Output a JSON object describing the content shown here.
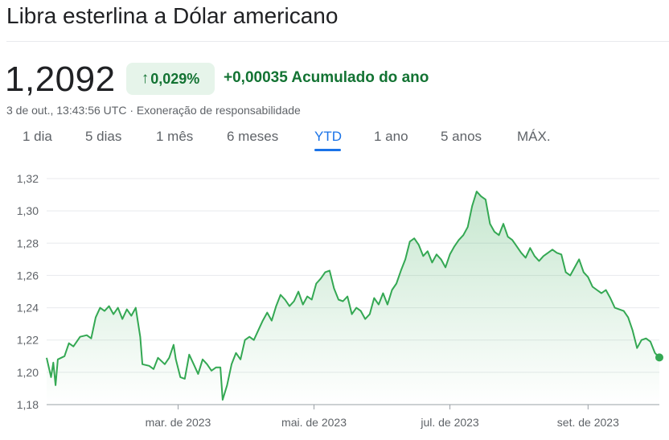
{
  "header": {
    "title": "Libra esterlina a Dólar americano",
    "price": "1,2092",
    "change_percent": "0,029%",
    "change_arrow_icon": "arrow-up-icon",
    "change_absolute": "+0,00035 Acumulado do ano",
    "timestamp": "3 de out., 13:43:56 UTC",
    "separator": " · ",
    "disclaimer": "Exoneração de responsabilidade"
  },
  "tabs": [
    {
      "label": "1 dia"
    },
    {
      "label": "5 dias"
    },
    {
      "label": "1 mês"
    },
    {
      "label": "6 meses"
    },
    {
      "label": "YTD",
      "active": true
    },
    {
      "label": "1 ano"
    },
    {
      "label": "5 anos"
    },
    {
      "label": "MÁX."
    }
  ],
  "colors": {
    "line": "#34a853",
    "positive_text": "#137333",
    "badge_bg": "#e6f4ea",
    "active_tab": "#1a73e8"
  },
  "chart_data": {
    "type": "area",
    "ylim": [
      1.18,
      1.32
    ],
    "yticks": [
      1.32,
      1.3,
      1.28,
      1.26,
      1.24,
      1.22,
      1.2,
      1.18
    ],
    "ytick_labels": [
      "1,32",
      "1,30",
      "1,28",
      "1,26",
      "1,24",
      "1,22",
      "1,20",
      "1,18"
    ],
    "xticks": [
      {
        "date": "2023-03-01",
        "label": "mar. de 2023"
      },
      {
        "date": "2023-05-01",
        "label": "mai. de 2023"
      },
      {
        "date": "2023-07-01",
        "label": "jul. de 2023"
      },
      {
        "date": "2023-09-01",
        "label": "set. de 2023"
      }
    ],
    "xlim": [
      "2023-01-01",
      "2023-10-03"
    ],
    "grid": "horizontal",
    "series": [
      {
        "points": [
          [
            "2023-01-01",
            1.209
          ],
          [
            "2023-01-03",
            1.197
          ],
          [
            "2023-01-04",
            1.206
          ],
          [
            "2023-01-05",
            1.192
          ],
          [
            "2023-01-06",
            1.208
          ],
          [
            "2023-01-09",
            1.21
          ],
          [
            "2023-01-11",
            1.218
          ],
          [
            "2023-01-13",
            1.216
          ],
          [
            "2023-01-16",
            1.222
          ],
          [
            "2023-01-19",
            1.223
          ],
          [
            "2023-01-21",
            1.221
          ],
          [
            "2023-01-23",
            1.234
          ],
          [
            "2023-01-25",
            1.24
          ],
          [
            "2023-01-27",
            1.238
          ],
          [
            "2023-01-29",
            1.241
          ],
          [
            "2023-01-31",
            1.236
          ],
          [
            "2023-02-02",
            1.24
          ],
          [
            "2023-02-04",
            1.233
          ],
          [
            "2023-02-06",
            1.239
          ],
          [
            "2023-02-08",
            1.235
          ],
          [
            "2023-02-10",
            1.24
          ],
          [
            "2023-02-12",
            1.222
          ],
          [
            "2023-02-13",
            1.205
          ],
          [
            "2023-02-16",
            1.204
          ],
          [
            "2023-02-18",
            1.202
          ],
          [
            "2023-02-20",
            1.209
          ],
          [
            "2023-02-23",
            1.205
          ],
          [
            "2023-02-25",
            1.209
          ],
          [
            "2023-02-27",
            1.217
          ],
          [
            "2023-02-28",
            1.208
          ],
          [
            "2023-03-02",
            1.197
          ],
          [
            "2023-03-04",
            1.196
          ],
          [
            "2023-03-06",
            1.211
          ],
          [
            "2023-03-08",
            1.205
          ],
          [
            "2023-03-10",
            1.199
          ],
          [
            "2023-03-12",
            1.208
          ],
          [
            "2023-03-14",
            1.205
          ],
          [
            "2023-03-16",
            1.201
          ],
          [
            "2023-03-18",
            1.203
          ],
          [
            "2023-03-20",
            1.203
          ],
          [
            "2023-03-21",
            1.183
          ],
          [
            "2023-03-23",
            1.192
          ],
          [
            "2023-03-25",
            1.205
          ],
          [
            "2023-03-27",
            1.212
          ],
          [
            "2023-03-29",
            1.208
          ],
          [
            "2023-03-31",
            1.22
          ],
          [
            "2023-04-02",
            1.222
          ],
          [
            "2023-04-04",
            1.22
          ],
          [
            "2023-04-06",
            1.226
          ],
          [
            "2023-04-08",
            1.232
          ],
          [
            "2023-04-10",
            1.237
          ],
          [
            "2023-04-12",
            1.232
          ],
          [
            "2023-04-14",
            1.241
          ],
          [
            "2023-04-16",
            1.248
          ],
          [
            "2023-04-18",
            1.245
          ],
          [
            "2023-04-20",
            1.241
          ],
          [
            "2023-04-22",
            1.244
          ],
          [
            "2023-04-24",
            1.25
          ],
          [
            "2023-04-26",
            1.242
          ],
          [
            "2023-04-28",
            1.247
          ],
          [
            "2023-04-30",
            1.245
          ],
          [
            "2023-05-02",
            1.255
          ],
          [
            "2023-05-04",
            1.258
          ],
          [
            "2023-05-06",
            1.262
          ],
          [
            "2023-05-08",
            1.263
          ],
          [
            "2023-05-10",
            1.252
          ],
          [
            "2023-05-12",
            1.245
          ],
          [
            "2023-05-14",
            1.244
          ],
          [
            "2023-05-16",
            1.247
          ],
          [
            "2023-05-18",
            1.236
          ],
          [
            "2023-05-20",
            1.24
          ],
          [
            "2023-05-22",
            1.238
          ],
          [
            "2023-05-24",
            1.233
          ],
          [
            "2023-05-26",
            1.236
          ],
          [
            "2023-05-28",
            1.246
          ],
          [
            "2023-05-30",
            1.242
          ],
          [
            "2023-06-01",
            1.249
          ],
          [
            "2023-06-03",
            1.242
          ],
          [
            "2023-06-05",
            1.251
          ],
          [
            "2023-06-07",
            1.255
          ],
          [
            "2023-06-09",
            1.263
          ],
          [
            "2023-06-11",
            1.27
          ],
          [
            "2023-06-13",
            1.281
          ],
          [
            "2023-06-15",
            1.283
          ],
          [
            "2023-06-17",
            1.279
          ],
          [
            "2023-06-19",
            1.272
          ],
          [
            "2023-06-21",
            1.275
          ],
          [
            "2023-06-23",
            1.268
          ],
          [
            "2023-06-25",
            1.273
          ],
          [
            "2023-06-27",
            1.27
          ],
          [
            "2023-06-29",
            1.265
          ],
          [
            "2023-07-01",
            1.273
          ],
          [
            "2023-07-03",
            1.278
          ],
          [
            "2023-07-05",
            1.282
          ],
          [
            "2023-07-07",
            1.285
          ],
          [
            "2023-07-09",
            1.29
          ],
          [
            "2023-07-11",
            1.303
          ],
          [
            "2023-07-13",
            1.312
          ],
          [
            "2023-07-15",
            1.309
          ],
          [
            "2023-07-17",
            1.307
          ],
          [
            "2023-07-19",
            1.292
          ],
          [
            "2023-07-21",
            1.287
          ],
          [
            "2023-07-23",
            1.285
          ],
          [
            "2023-07-25",
            1.292
          ],
          [
            "2023-07-27",
            1.284
          ],
          [
            "2023-07-29",
            1.282
          ],
          [
            "2023-07-31",
            1.278
          ],
          [
            "2023-08-02",
            1.274
          ],
          [
            "2023-08-04",
            1.271
          ],
          [
            "2023-08-06",
            1.277
          ],
          [
            "2023-08-08",
            1.272
          ],
          [
            "2023-08-10",
            1.269
          ],
          [
            "2023-08-12",
            1.272
          ],
          [
            "2023-08-14",
            1.274
          ],
          [
            "2023-08-16",
            1.276
          ],
          [
            "2023-08-18",
            1.274
          ],
          [
            "2023-08-20",
            1.273
          ],
          [
            "2023-08-22",
            1.262
          ],
          [
            "2023-08-24",
            1.26
          ],
          [
            "2023-08-26",
            1.265
          ],
          [
            "2023-08-28",
            1.27
          ],
          [
            "2023-08-30",
            1.262
          ],
          [
            "2023-09-01",
            1.259
          ],
          [
            "2023-09-03",
            1.253
          ],
          [
            "2023-09-05",
            1.251
          ],
          [
            "2023-09-07",
            1.249
          ],
          [
            "2023-09-09",
            1.251
          ],
          [
            "2023-09-11",
            1.246
          ],
          [
            "2023-09-13",
            1.24
          ],
          [
            "2023-09-15",
            1.239
          ],
          [
            "2023-09-17",
            1.238
          ],
          [
            "2023-09-19",
            1.234
          ],
          [
            "2023-09-21",
            1.226
          ],
          [
            "2023-09-23",
            1.215
          ],
          [
            "2023-09-25",
            1.22
          ],
          [
            "2023-09-27",
            1.221
          ],
          [
            "2023-09-29",
            1.219
          ],
          [
            "2023-10-01",
            1.212
          ],
          [
            "2023-10-03",
            1.2092
          ]
        ]
      }
    ]
  }
}
